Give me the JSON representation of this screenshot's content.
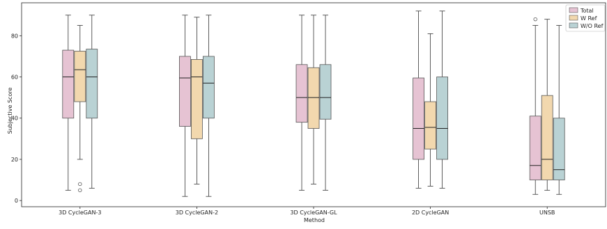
{
  "chart_data": {
    "type": "boxplot",
    "xlabel": "Method",
    "ylabel": "Subjective Score",
    "ylim": [
      -3,
      96
    ],
    "yticks": [
      0,
      20,
      40,
      60,
      80
    ],
    "grid": false,
    "legend_position": "top-right",
    "categories": [
      "3D CycleGAN-3",
      "3D CycleGAN-2",
      "3D CycleGAN-GL",
      "2D CycleGAN",
      "UNSB"
    ],
    "series": [
      {
        "name": "Total",
        "color": "#e6c3d3",
        "boxes": [
          {
            "whisker_low": 5,
            "q1": 40,
            "median": 60,
            "q3": 73,
            "whisker_high": 90,
            "outliers": []
          },
          {
            "whisker_low": 2,
            "q1": 36,
            "median": 59.5,
            "q3": 70,
            "whisker_high": 90,
            "outliers": []
          },
          {
            "whisker_low": 5,
            "q1": 38,
            "median": 50,
            "q3": 66,
            "whisker_high": 90,
            "outliers": []
          },
          {
            "whisker_low": 6,
            "q1": 20,
            "median": 35,
            "q3": 59.5,
            "whisker_high": 92,
            "outliers": []
          },
          {
            "whisker_low": 3,
            "q1": 10,
            "median": 17,
            "q3": 41,
            "whisker_high": 85,
            "outliers": [
              88
            ]
          }
        ]
      },
      {
        "name": "W Ref",
        "color": "#f2d8ae",
        "boxes": [
          {
            "whisker_low": 20,
            "q1": 48,
            "median": 63.5,
            "q3": 72.5,
            "whisker_high": 85,
            "outliers": [
              8,
              5
            ]
          },
          {
            "whisker_low": 8,
            "q1": 30,
            "median": 60,
            "q3": 68.5,
            "whisker_high": 89,
            "outliers": []
          },
          {
            "whisker_low": 8,
            "q1": 35,
            "median": 50,
            "q3": 64.5,
            "whisker_high": 90,
            "outliers": []
          },
          {
            "whisker_low": 7,
            "q1": 25,
            "median": 35.5,
            "q3": 48,
            "whisker_high": 81,
            "outliers": []
          },
          {
            "whisker_low": 5,
            "q1": 10,
            "median": 20,
            "q3": 51,
            "whisker_high": 88,
            "outliers": []
          }
        ]
      },
      {
        "name": "W/O Ref",
        "color": "#b9d2d4",
        "boxes": [
          {
            "whisker_low": 6,
            "q1": 40,
            "median": 60,
            "q3": 73.5,
            "whisker_high": 90,
            "outliers": []
          },
          {
            "whisker_low": 2,
            "q1": 40,
            "median": 57,
            "q3": 70,
            "whisker_high": 90,
            "outliers": []
          },
          {
            "whisker_low": 5,
            "q1": 39.5,
            "median": 50,
            "q3": 66,
            "whisker_high": 90,
            "outliers": []
          },
          {
            "whisker_low": 6,
            "q1": 20,
            "median": 35,
            "q3": 60,
            "whisker_high": 92,
            "outliers": []
          },
          {
            "whisker_low": 3,
            "q1": 10,
            "median": 15,
            "q3": 40,
            "whisker_high": 85,
            "outliers": []
          }
        ]
      }
    ]
  }
}
